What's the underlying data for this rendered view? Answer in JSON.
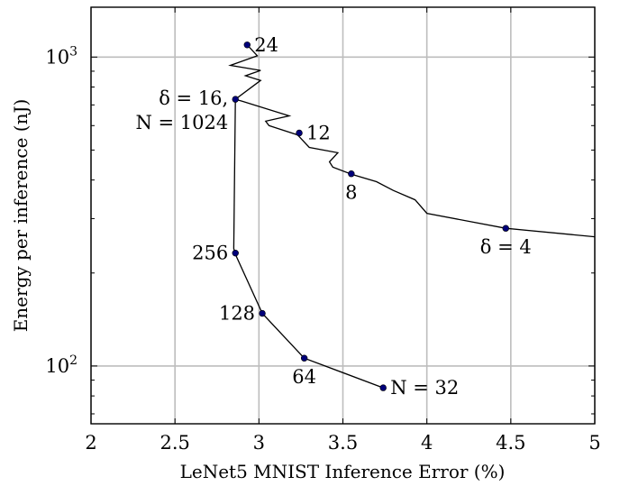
{
  "chart_data": {
    "type": "line",
    "xlabel": "LeNet5 MNIST Inference Error (%)",
    "ylabel": "Energy per inference (nJ)",
    "xlim": [
      2,
      5
    ],
    "ylim": [
      65,
      1450
    ],
    "yscale": "log",
    "grid": true,
    "x_ticks": [
      {
        "value": 2,
        "label": "2"
      },
      {
        "value": 2.5,
        "label": "2.5"
      },
      {
        "value": 3,
        "label": "3"
      },
      {
        "value": 3.5,
        "label": "3.5"
      },
      {
        "value": 4,
        "label": "4"
      },
      {
        "value": 4.5,
        "label": "4.5"
      },
      {
        "value": 5,
        "label": "5"
      }
    ],
    "y_ticks": [
      {
        "value": 100,
        "label": "10",
        "exp": "2"
      },
      {
        "value": 1000,
        "label": "10",
        "exp": "3"
      }
    ],
    "series": [
      {
        "points": [
          [
            5.0,
            262
          ],
          [
            4.47,
            279
          ],
          [
            4.0,
            312
          ],
          [
            3.93,
            345
          ],
          [
            3.8,
            370
          ],
          [
            3.7,
            395
          ],
          [
            3.56,
            416
          ],
          [
            3.44,
            440
          ],
          [
            3.42,
            458
          ],
          [
            3.47,
            490
          ],
          [
            3.3,
            510
          ],
          [
            3.23,
            560
          ],
          [
            3.1,
            590
          ],
          [
            3.06,
            600
          ],
          [
            3.04,
            620
          ],
          [
            3.18,
            645
          ],
          [
            2.9,
            720
          ],
          [
            2.86,
            730
          ],
          [
            3.01,
            840
          ],
          [
            2.92,
            870
          ],
          [
            3.01,
            905
          ],
          [
            2.83,
            940
          ],
          [
            2.99,
            1010
          ],
          [
            2.93,
            1095
          ]
        ]
      },
      {
        "points": [
          [
            2.86,
            730
          ],
          [
            2.85,
            240
          ],
          [
            2.86,
            230
          ],
          [
            3.02,
            148
          ],
          [
            3.27,
            106
          ],
          [
            3.74,
            85
          ]
        ]
      }
    ],
    "marked_points": [
      {
        "x": 2.93,
        "y": 1095,
        "label": "24",
        "anchor": "right"
      },
      {
        "x": 2.86,
        "y": 730,
        "label": "δ = 16,",
        "label2": "N = 1024",
        "anchor": "left"
      },
      {
        "x": 3.24,
        "y": 568,
        "label": "12",
        "anchor": "right"
      },
      {
        "x": 3.55,
        "y": 419,
        "label": "8",
        "anchor": "below"
      },
      {
        "x": 4.47,
        "y": 279,
        "label": "δ = 4",
        "anchor": "below-right"
      },
      {
        "x": 2.86,
        "y": 232,
        "label": "256",
        "anchor": "left"
      },
      {
        "x": 3.02,
        "y": 148,
        "label": "128",
        "anchor": "left"
      },
      {
        "x": 3.27,
        "y": 106,
        "label": "64",
        "anchor": "below"
      },
      {
        "x": 3.74,
        "y": 85,
        "label": "N = 32",
        "anchor": "right"
      }
    ]
  }
}
